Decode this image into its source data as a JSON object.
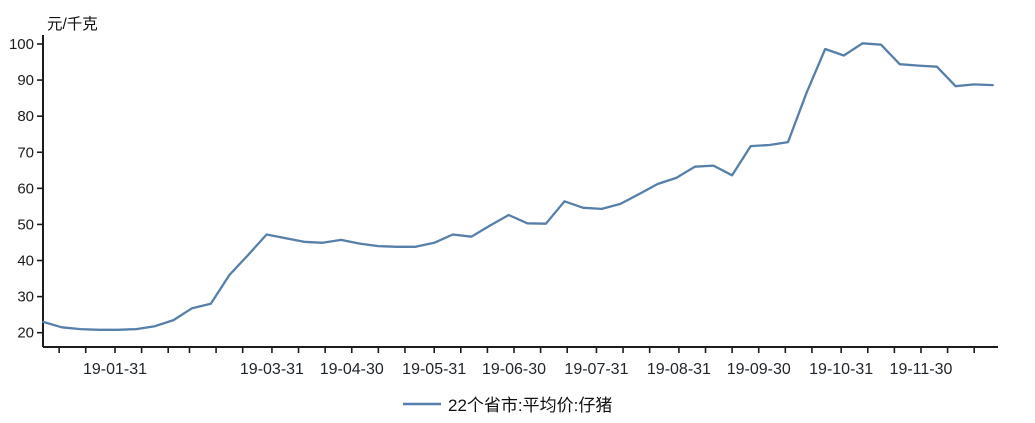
{
  "chart_data": {
    "type": "line",
    "title": "",
    "unit_label": "元/千克",
    "background": "#ffffff",
    "axis_color": "#1c1c1c",
    "grid": false,
    "legend_position": "bottom-center",
    "ylim": [
      20,
      100
    ],
    "yticks": [
      20,
      30,
      40,
      50,
      60,
      70,
      80,
      90,
      100
    ],
    "xtick_major_labels": [
      "19-01-31",
      "19-03-31",
      "19-04-30",
      "19-05-31",
      "19-06-30",
      "19-07-31",
      "19-08-31",
      "19-09-30",
      "19-10-31",
      "19-11-30"
    ],
    "series": [
      {
        "name": "22个省市:平均价:仔猪",
        "color": "#567fa9",
        "dates": [
          "19-01-04",
          "19-01-11",
          "19-01-18",
          "19-01-25",
          "19-02-01",
          "19-02-08",
          "19-02-15",
          "19-02-22",
          "19-03-01",
          "19-03-08",
          "19-03-15",
          "19-03-22",
          "19-03-29",
          "19-04-05",
          "19-04-12",
          "19-04-19",
          "19-04-26",
          "19-05-03",
          "19-05-10",
          "19-05-17",
          "19-05-24",
          "19-05-31",
          "19-06-07",
          "19-06-14",
          "19-06-21",
          "19-06-28",
          "19-07-05",
          "19-07-12",
          "19-07-19",
          "19-07-26",
          "19-08-02",
          "19-08-09",
          "19-08-16",
          "19-08-23",
          "19-08-30",
          "19-09-06",
          "19-09-13",
          "19-09-20",
          "19-09-27",
          "19-10-04",
          "19-10-11",
          "19-10-18",
          "19-10-25",
          "19-11-01",
          "19-11-08",
          "19-11-15",
          "19-11-22",
          "19-11-29",
          "19-12-06",
          "19-12-13",
          "19-12-20",
          "19-12-27"
        ],
        "values": [
          23.0,
          21.5,
          21.0,
          20.8,
          20.8,
          21.0,
          21.8,
          23.5,
          26.8,
          28.0,
          36.0,
          41.5,
          47.2,
          46.2,
          45.2,
          44.9,
          45.7,
          44.7,
          44.0,
          43.8,
          43.8,
          44.9,
          47.2,
          46.6,
          49.7,
          52.6,
          50.3,
          50.2,
          56.4,
          54.6,
          54.3,
          55.7,
          58.4,
          61.2,
          62.9,
          66.0,
          66.3,
          63.6,
          71.7,
          72.0,
          72.8,
          86.5,
          98.6,
          96.8,
          100.2,
          99.8,
          94.4,
          94.0,
          93.7,
          88.3,
          88.8,
          88.6
        ]
      }
    ]
  }
}
